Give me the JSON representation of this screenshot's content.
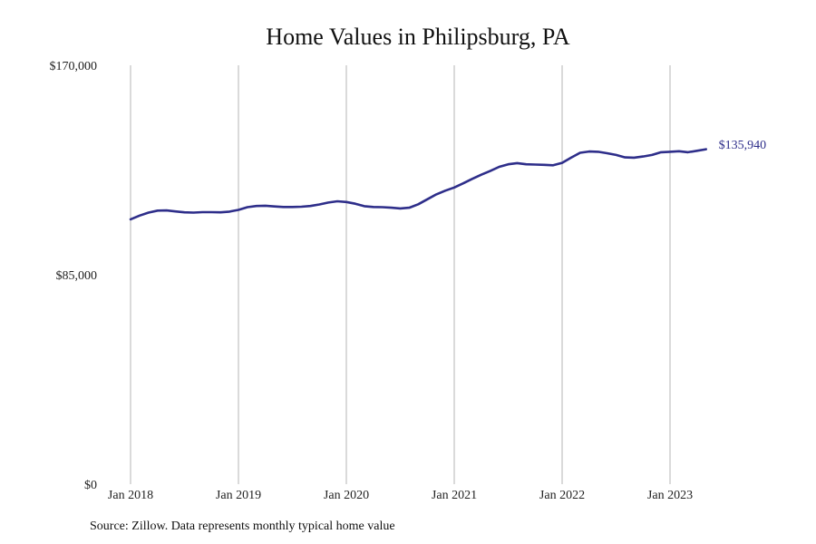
{
  "chart_data": {
    "type": "line",
    "title": "Home Values in Philipsburg, PA",
    "xlabel": "",
    "ylabel": "",
    "ylim": [
      0,
      170000
    ],
    "y_ticks": [
      {
        "value": 0,
        "label": "$0"
      },
      {
        "value": 85000,
        "label": "$85,000"
      },
      {
        "value": 170000,
        "label": "$170,000"
      }
    ],
    "x_ticks": [
      "Jan 2018",
      "Jan 2019",
      "Jan 2020",
      "Jan 2021",
      "Jan 2022",
      "Jan 2023"
    ],
    "grid": "vertical",
    "line_color": "#2e2e8a",
    "series": [
      {
        "x": [
          "2018-01",
          "2018-02",
          "2018-03",
          "2018-04",
          "2018-05",
          "2018-06",
          "2018-07",
          "2018-08",
          "2018-09",
          "2018-10",
          "2018-11",
          "2018-12",
          "2019-01",
          "2019-02",
          "2019-03",
          "2019-04",
          "2019-05",
          "2019-06",
          "2019-07",
          "2019-08",
          "2019-09",
          "2019-10",
          "2019-11",
          "2019-12",
          "2020-01",
          "2020-02",
          "2020-03",
          "2020-04",
          "2020-05",
          "2020-06",
          "2020-07",
          "2020-08",
          "2020-09",
          "2020-10",
          "2020-11",
          "2020-12",
          "2021-01",
          "2021-02",
          "2021-03",
          "2021-04",
          "2021-05",
          "2021-06",
          "2021-07",
          "2021-08",
          "2021-09",
          "2021-10",
          "2021-11",
          "2021-12",
          "2022-01",
          "2022-02",
          "2022-03",
          "2022-04",
          "2022-05",
          "2022-06",
          "2022-07",
          "2022-08",
          "2022-09",
          "2022-10",
          "2022-11",
          "2022-12",
          "2023-01",
          "2023-02",
          "2023-03",
          "2023-04",
          "2023-05"
        ],
        "values": [
          107500,
          109000,
          110200,
          111000,
          111100,
          110700,
          110300,
          110200,
          110400,
          110400,
          110300,
          110600,
          111300,
          112400,
          112900,
          113000,
          112700,
          112500,
          112500,
          112600,
          112900,
          113500,
          114300,
          114800,
          114500,
          113800,
          112800,
          112500,
          112400,
          112200,
          111900,
          112200,
          113600,
          115600,
          117600,
          119100,
          120400,
          122100,
          123900,
          125600,
          127100,
          128800,
          129800,
          130300,
          129800,
          129700,
          129600,
          129400,
          130400,
          132500,
          134500,
          135000,
          134900,
          134300,
          133600,
          132600,
          132500,
          133000,
          133600,
          134700,
          134900,
          135100,
          134700,
          135300,
          135940
        ]
      }
    ],
    "end_label": "$135,940",
    "source": "Source: Zillow. Data represents monthly typical home value"
  }
}
